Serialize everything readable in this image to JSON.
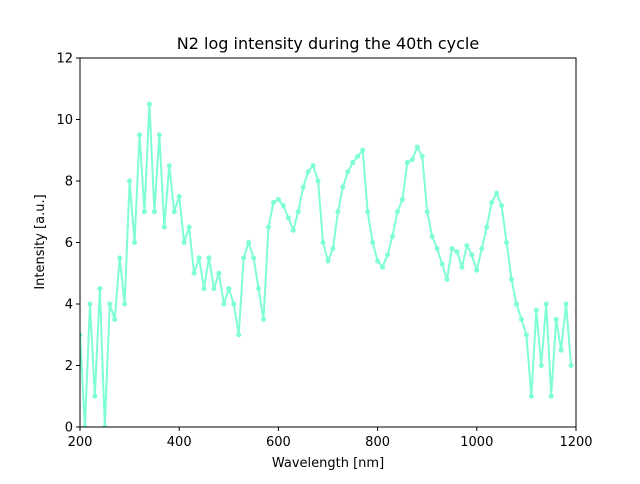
{
  "chart_data": {
    "type": "line",
    "title": "N2 log intensity during the 40th cycle",
    "xlabel": "Wavelength [nm]",
    "ylabel": "Intensity [a.u.]",
    "color": "#7fffd4",
    "x": [
      200,
      210,
      220,
      230,
      240,
      250,
      260,
      270,
      280,
      290,
      300,
      310,
      320,
      330,
      340,
      350,
      360,
      370,
      380,
      390,
      400,
      410,
      420,
      430,
      440,
      450,
      460,
      470,
      480,
      490,
      500,
      510,
      520,
      530,
      540,
      550,
      560,
      570,
      580,
      590,
      600,
      610,
      620,
      630,
      640,
      650,
      660,
      670,
      680,
      690,
      700,
      710,
      720,
      730,
      740,
      750,
      760,
      770,
      780,
      790,
      800,
      810,
      820,
      830,
      840,
      850,
      860,
      870,
      880,
      890,
      900,
      910,
      920,
      930,
      940,
      950,
      960,
      970,
      980,
      990,
      1000,
      1010,
      1020,
      1030,
      1040,
      1050,
      1060,
      1070,
      1080,
      1090,
      1100,
      1110,
      1120,
      1130,
      1140,
      1150,
      1160,
      1170,
      1180,
      1190
    ],
    "values": [
      3,
      0,
      4,
      1,
      4.5,
      0,
      4,
      3.5,
      5.5,
      4,
      8,
      6,
      9.5,
      7,
      10.5,
      7,
      9.5,
      6.5,
      8.5,
      7,
      7.5,
      6,
      6.5,
      5,
      5.5,
      4.5,
      5.5,
      4.5,
      5,
      4,
      4.5,
      4,
      3,
      5.5,
      6,
      5.5,
      4.5,
      3.5,
      6.5,
      7.3,
      7.4,
      7.2,
      6.8,
      6.4,
      7,
      7.8,
      8.3,
      8.5,
      8,
      6,
      5.4,
      5.8,
      7,
      7.8,
      8.3,
      8.6,
      8.8,
      9,
      7,
      6,
      5.4,
      5.2,
      5.6,
      6.2,
      7,
      7.4,
      8.6,
      8.7,
      9.1,
      8.8,
      7,
      6.2,
      5.8,
      5.3,
      4.8,
      5.8,
      5.7,
      5.2,
      5.9,
      5.6,
      5.1,
      5.8,
      6.5,
      7.3,
      7.6,
      7.2,
      6,
      4.8,
      4,
      3.5,
      3,
      1,
      3.8,
      2,
      4,
      1,
      3.5,
      2.5,
      4,
      2
    ],
    "xlim": [
      200,
      1200
    ],
    "xticks": [
      200,
      400,
      600,
      800,
      1000,
      1200
    ],
    "ylim": [
      0,
      12
    ],
    "yticks": [
      0,
      2,
      4,
      6,
      8,
      10,
      12
    ]
  }
}
